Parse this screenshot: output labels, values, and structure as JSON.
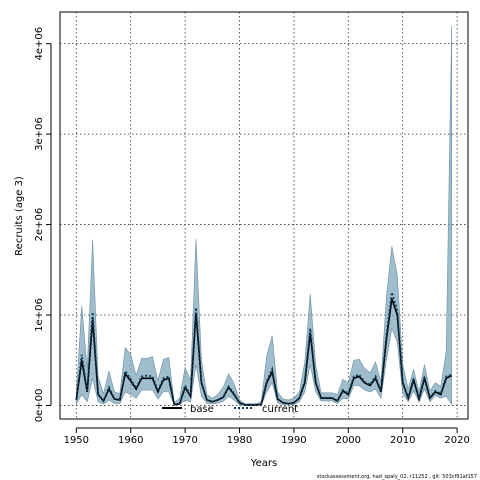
{
  "chart_data": {
    "type": "line",
    "xlabel": "Years",
    "ylabel": "Recruits (age 3)",
    "xlim": [
      1947,
      2022
    ],
    "ylim": [
      -150000,
      4350000
    ],
    "x_ticks": [
      1950,
      1960,
      1970,
      1980,
      1990,
      2000,
      2010,
      2020
    ],
    "x_tick_labels": [
      "1950",
      "1960",
      "1970",
      "1980",
      "1990",
      "2000",
      "2010",
      "2020"
    ],
    "y_ticks": [
      0,
      1000000,
      2000000,
      3000000,
      4000000
    ],
    "y_tick_labels": [
      "0e+00",
      "1e+06",
      "2e+06",
      "3e+06",
      "4e+06"
    ],
    "grid": true,
    "legend_placement": "bottom-center",
    "x": [
      1950,
      1951,
      1952,
      1953,
      1954,
      1955,
      1956,
      1957,
      1958,
      1959,
      1960,
      1961,
      1962,
      1963,
      1964,
      1965,
      1966,
      1967,
      1968,
      1969,
      1970,
      1971,
      1972,
      1973,
      1974,
      1975,
      1976,
      1977,
      1978,
      1979,
      1980,
      1981,
      1982,
      1983,
      1984,
      1985,
      1986,
      1987,
      1988,
      1989,
      1990,
      1991,
      1992,
      1993,
      1994,
      1995,
      1996,
      1997,
      1998,
      1999,
      2000,
      2001,
      2002,
      2003,
      2004,
      2005,
      2006,
      2007,
      2008,
      2009,
      2010,
      2011,
      2012,
      2013,
      2014,
      2015,
      2016,
      2017,
      2018,
      2019
    ],
    "series": [
      {
        "name": "base",
        "color": "#000000",
        "values": [
          60000,
          500000,
          150000,
          950000,
          120000,
          50000,
          180000,
          70000,
          60000,
          350000,
          270000,
          180000,
          300000,
          300000,
          300000,
          150000,
          280000,
          300000,
          10000,
          20000,
          200000,
          100000,
          1020000,
          250000,
          60000,
          40000,
          60000,
          90000,
          200000,
          120000,
          30000,
          5000,
          5000,
          5000,
          10000,
          250000,
          370000,
          70000,
          30000,
          20000,
          30000,
          80000,
          250000,
          800000,
          250000,
          80000,
          80000,
          80000,
          50000,
          160000,
          120000,
          300000,
          320000,
          250000,
          220000,
          300000,
          150000,
          730000,
          1180000,
          1000000,
          250000,
          80000,
          280000,
          70000,
          300000,
          80000,
          150000,
          120000,
          300000,
          330000
        ]
      },
      {
        "name": "current",
        "color": "#0a3a56",
        "values": [
          60000,
          560000,
          150000,
          1030000,
          130000,
          50000,
          200000,
          75000,
          65000,
          380000,
          290000,
          190000,
          320000,
          330000,
          320000,
          160000,
          300000,
          320000,
          10000,
          20000,
          220000,
          110000,
          1080000,
          260000,
          60000,
          40000,
          60000,
          90000,
          210000,
          130000,
          30000,
          5000,
          5000,
          5000,
          10000,
          270000,
          400000,
          70000,
          30000,
          20000,
          30000,
          85000,
          270000,
          850000,
          260000,
          85000,
          85000,
          85000,
          55000,
          170000,
          130000,
          320000,
          340000,
          260000,
          230000,
          320000,
          160000,
          770000,
          1250000,
          1050000,
          260000,
          85000,
          300000,
          75000,
          320000,
          85000,
          160000,
          130000,
          320000,
          340000
        ]
      },
      {
        "name": "",
        "color": "#7fa7bc",
        "values_lower": [
          20000,
          120000,
          40000,
          300000,
          40000,
          15000,
          60000,
          20000,
          20000,
          150000,
          120000,
          80000,
          170000,
          170000,
          170000,
          70000,
          150000,
          150000,
          3000,
          8000,
          60000,
          40000,
          450000,
          100000,
          20000,
          15000,
          25000,
          45000,
          100000,
          60000,
          10000,
          1000,
          1000,
          1000,
          4000,
          150000,
          250000,
          30000,
          10000,
          5000,
          10000,
          40000,
          150000,
          450000,
          150000,
          50000,
          50000,
          50000,
          20000,
          80000,
          70000,
          220000,
          220000,
          170000,
          150000,
          180000,
          80000,
          500000,
          850000,
          700000,
          130000,
          40000,
          160000,
          40000,
          180000,
          40000,
          110000,
          80000,
          100000,
          10000
        ],
        "values_upper": [
          120000,
          1100000,
          400000,
          1830000,
          320000,
          130000,
          380000,
          150000,
          130000,
          640000,
          560000,
          330000,
          520000,
          520000,
          540000,
          270000,
          510000,
          530000,
          30000,
          80000,
          420000,
          280000,
          1840000,
          500000,
          120000,
          80000,
          120000,
          200000,
          350000,
          240000,
          60000,
          20000,
          20000,
          20000,
          40000,
          550000,
          770000,
          150000,
          70000,
          60000,
          80000,
          150000,
          480000,
          1230000,
          450000,
          140000,
          140000,
          140000,
          120000,
          290000,
          250000,
          500000,
          510000,
          410000,
          360000,
          480000,
          260000,
          1200000,
          1760000,
          1440000,
          450000,
          180000,
          400000,
          150000,
          450000,
          160000,
          250000,
          210000,
          600000,
          4200000
        ]
      }
    ],
    "legend": [
      {
        "label": "base",
        "color": "#000000",
        "style": "solid"
      },
      {
        "label": "current",
        "color": "#0a3a56",
        "style": "dashed"
      }
    ]
  },
  "footer": "stockassessment.org, had_spaly_02, r11252 , git: 503cf91af157"
}
